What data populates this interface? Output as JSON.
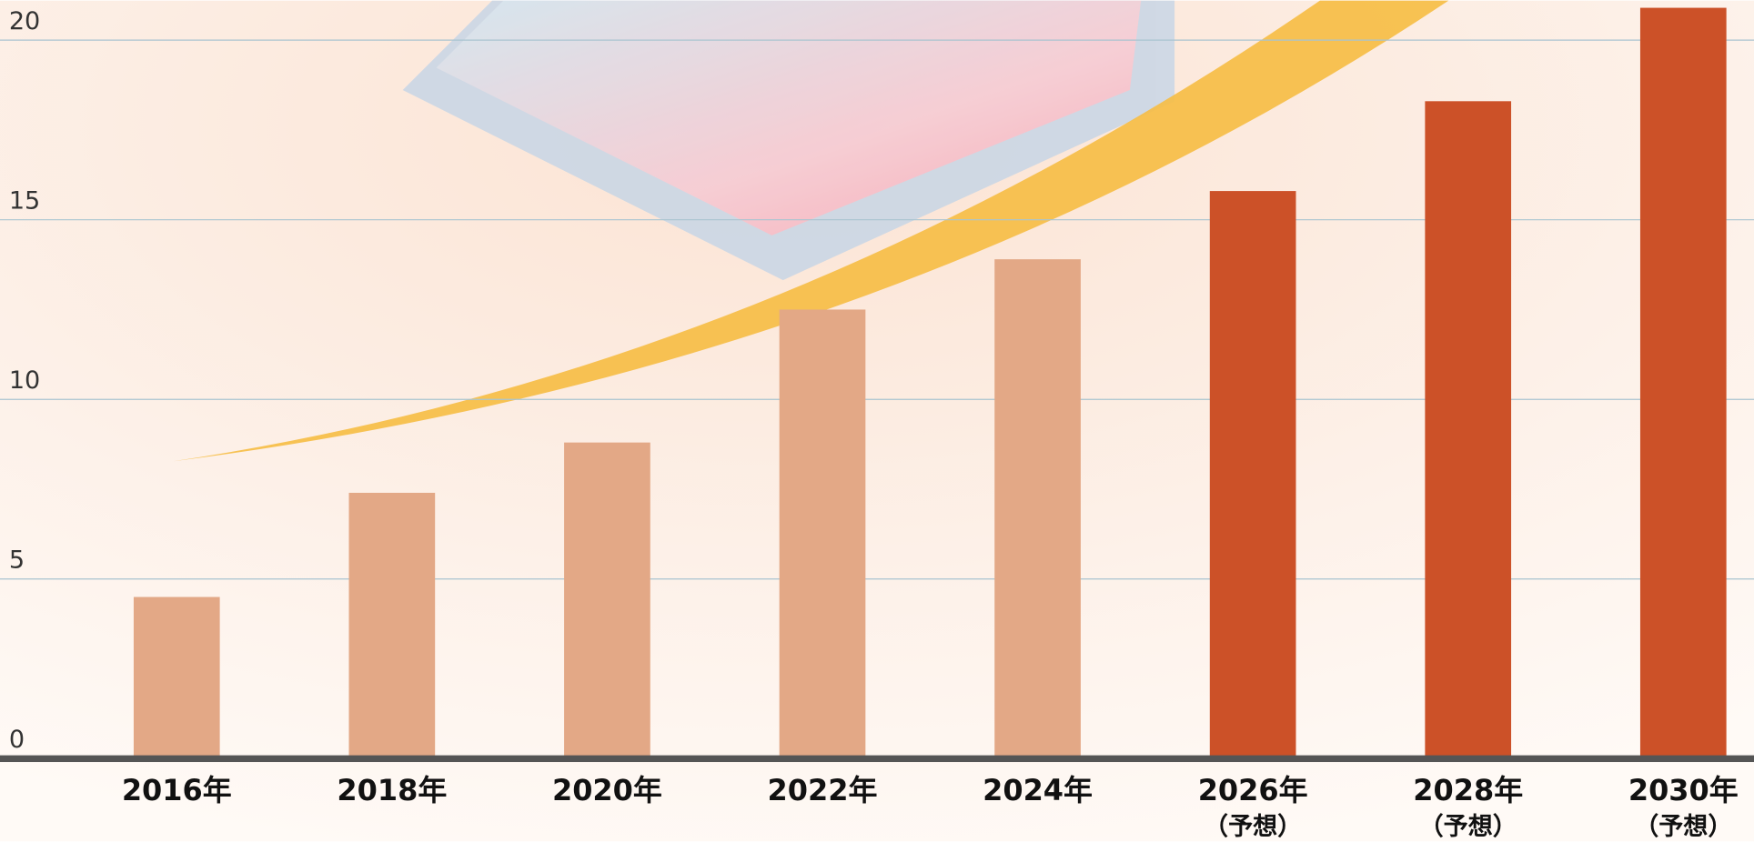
{
  "chart_data": {
    "type": "bar",
    "categories": [
      "2016年",
      "2018年",
      "2020年",
      "2022年",
      "2024年",
      "2026年\n（予想）",
      "2028年\n（予想）",
      "2030年\n（予想）"
    ],
    "values": [
      4.5,
      7.4,
      8.8,
      12.5,
      13.9,
      15.8,
      18.3,
      20.9
    ],
    "colors": [
      "#e3a886",
      "#e3a886",
      "#e3a886",
      "#e3a886",
      "#e3a886",
      "#cc5128",
      "#cc5128",
      "#cc5128"
    ],
    "ylim": [
      0,
      21.1
    ],
    "yticks": [
      0,
      5,
      10,
      15,
      20
    ],
    "grid": true
  }
}
